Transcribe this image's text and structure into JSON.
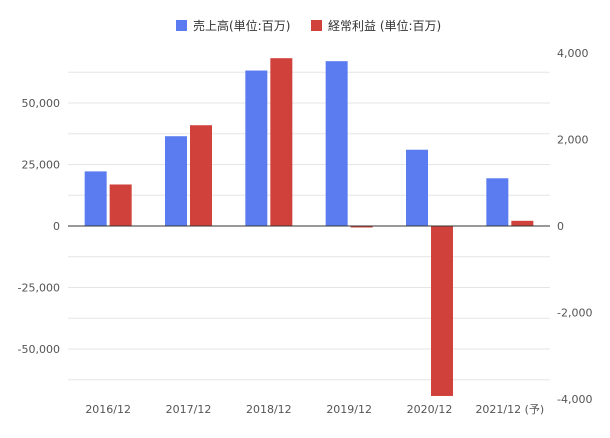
{
  "chart_data": {
    "type": "bar",
    "categories": [
      "2016/12",
      "2017/12",
      "2018/12",
      "2019/12",
      "2020/12",
      "2021/12 (予)"
    ],
    "series": [
      {
        "name": "売上高(単位:百万)",
        "axis": "left",
        "color": "#5b7cf0",
        "values": [
          22200,
          36500,
          63200,
          67000,
          31000,
          19400
        ]
      },
      {
        "name": "経常利益 (単位:百万)",
        "axis": "right",
        "color": "#d0413b",
        "values": [
          960,
          2330,
          3880,
          -30,
          -3930,
          120
        ]
      }
    ],
    "y_left": {
      "ticks": [
        50000,
        25000,
        0,
        -25000,
        -50000
      ],
      "tick_labels": [
        "50,000",
        "25,000",
        "0",
        "-25,000",
        "-50,000"
      ],
      "ylim": [
        -69000,
        69000
      ]
    },
    "y_right": {
      "ticks": [
        4000,
        2000,
        0,
        -2000,
        -4000
      ],
      "tick_labels": [
        "4,000",
        "2,000",
        "0",
        "-2,000",
        "-4,000"
      ],
      "ylim": [
        -4000,
        4000
      ]
    },
    "legend": {
      "placement": "top-center"
    },
    "grid": true
  }
}
